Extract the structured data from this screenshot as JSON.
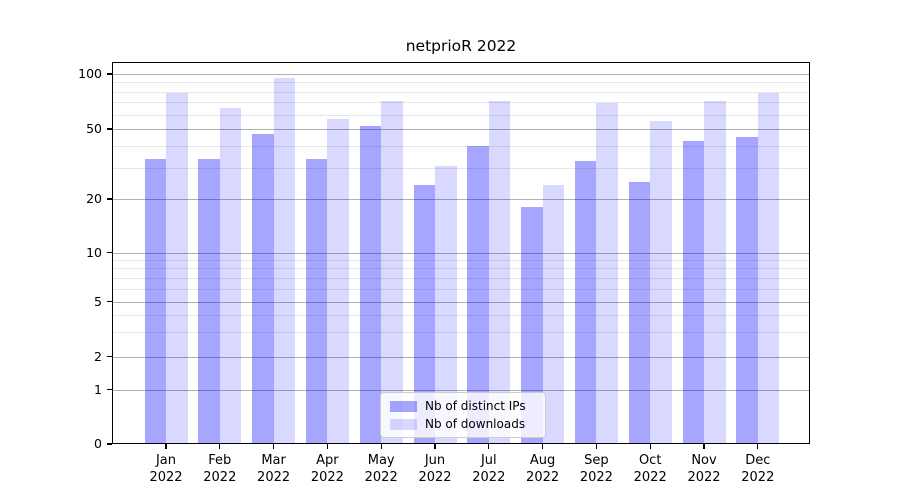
{
  "figure": {
    "title": "netprioR 2022"
  },
  "chart_data": {
    "type": "bar",
    "title": "netprioR 2022",
    "yscale": "symlog",
    "yticks": [
      100,
      50,
      20,
      10,
      5,
      2,
      1,
      0
    ],
    "ylim": [
      0,
      115
    ],
    "grid": true,
    "legend_position": "lower center",
    "categories": [
      {
        "month": "Jan",
        "year": "2022"
      },
      {
        "month": "Feb",
        "year": "2022"
      },
      {
        "month": "Mar",
        "year": "2022"
      },
      {
        "month": "Apr",
        "year": "2022"
      },
      {
        "month": "May",
        "year": "2022"
      },
      {
        "month": "Jun",
        "year": "2022"
      },
      {
        "month": "Jul",
        "year": "2022"
      },
      {
        "month": "Aug",
        "year": "2022"
      },
      {
        "month": "Sep",
        "year": "2022"
      },
      {
        "month": "Oct",
        "year": "2022"
      },
      {
        "month": "Nov",
        "year": "2022"
      },
      {
        "month": "Dec",
        "year": "2022"
      }
    ],
    "series": [
      {
        "name": "Nb of distinct IPs",
        "key": "ips",
        "values": [
          34,
          34,
          47,
          34,
          52,
          24,
          40,
          18,
          33,
          25,
          43,
          45
        ]
      },
      {
        "name": "Nb of downloads",
        "key": "downloads",
        "values": [
          79,
          65,
          95,
          57,
          71,
          31,
          71,
          24,
          69,
          55,
          71,
          79
        ]
      }
    ]
  },
  "colors": {
    "ips_bar": "rgba(0,0,255,0.35)",
    "ips_bar_hex": "#a6a6ff",
    "downloads_bar": "rgba(0,0,255,0.15)",
    "downloads_bar_hex": "#d9d9ff",
    "grid_major": "#b0b0b0",
    "grid_minor": "#e7e7e7",
    "axis": "#000000",
    "text": "#000000",
    "legend_border": "#cccccc",
    "legend_bg": "rgba(255,255,255,0.8)"
  }
}
